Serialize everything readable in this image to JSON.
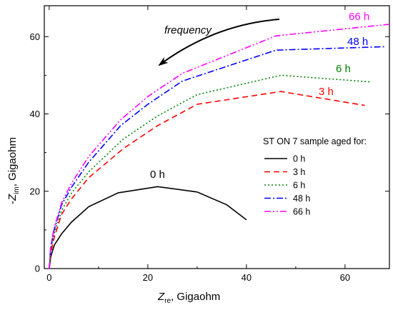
{
  "chart_data": {
    "type": "line",
    "xlabel": {
      "main": "Z",
      "sub": "re",
      "rest": ",  Gigaohm"
    },
    "ylabel": {
      "prefix": "-",
      "main": "Z",
      "sub": "im",
      "rest": ",  Gigaohm"
    },
    "xlim": [
      -1,
      69
    ],
    "ylim": [
      0,
      68
    ],
    "xticks": [
      0,
      20,
      40,
      60
    ],
    "yticks": [
      0,
      20,
      40,
      60
    ],
    "grid": false,
    "legend": {
      "title": "ST ON 7 sample aged for:",
      "placement": "center-right"
    },
    "annotations": {
      "frequency": "frequency",
      "arrow_direction": "decreasing along curves"
    },
    "series": [
      {
        "name": "0 h",
        "label": "0 h",
        "color": "#000000",
        "dash": "solid",
        "x": [
          0,
          0.3,
          1,
          2.5,
          4.5,
          8,
          14,
          22,
          30,
          36,
          40
        ],
        "y": [
          0,
          3,
          6,
          9,
          12,
          16,
          19.6,
          21.2,
          19.8,
          16.5,
          12.6
        ]
      },
      {
        "name": "3 h",
        "label": "3 h",
        "color": "#ff0000",
        "dash": "dashed",
        "x": [
          0,
          0.3,
          1,
          2.5,
          4.5,
          8,
          15,
          22,
          30,
          47,
          64
        ],
        "y": [
          0,
          4,
          8,
          14,
          18,
          23.5,
          31,
          37,
          42.5,
          45.8,
          42.2
        ]
      },
      {
        "name": "6 h",
        "label": "6 h",
        "color": "#008000",
        "dash": "dotted",
        "x": [
          0,
          0.3,
          1,
          2.5,
          4.5,
          8,
          15,
          22,
          30,
          47,
          65
        ],
        "y": [
          0,
          5,
          9,
          15,
          19.5,
          25,
          33.5,
          39.5,
          45,
          50,
          48.3
        ]
      },
      {
        "name": "48 h",
        "label": "48 h",
        "color": "#0000ff",
        "dash": "dashdot",
        "x": [
          0,
          0.3,
          1,
          2.5,
          4.5,
          8,
          14.5,
          20,
          27,
          46,
          68
        ],
        "y": [
          0,
          5.5,
          10,
          16.5,
          21,
          27.5,
          37,
          42.5,
          48.5,
          56.5,
          57.4
        ]
      },
      {
        "name": "66 h",
        "label": "66 h",
        "color": "#ff00ff",
        "dash": "dashdotdot",
        "x": [
          0,
          0.3,
          1,
          2.5,
          4.5,
          8,
          14.5,
          20,
          27,
          46,
          69
        ],
        "y": [
          0,
          6,
          10.5,
          17,
          22,
          29,
          38.5,
          44.5,
          50.5,
          60.2,
          63.2
        ]
      }
    ]
  }
}
